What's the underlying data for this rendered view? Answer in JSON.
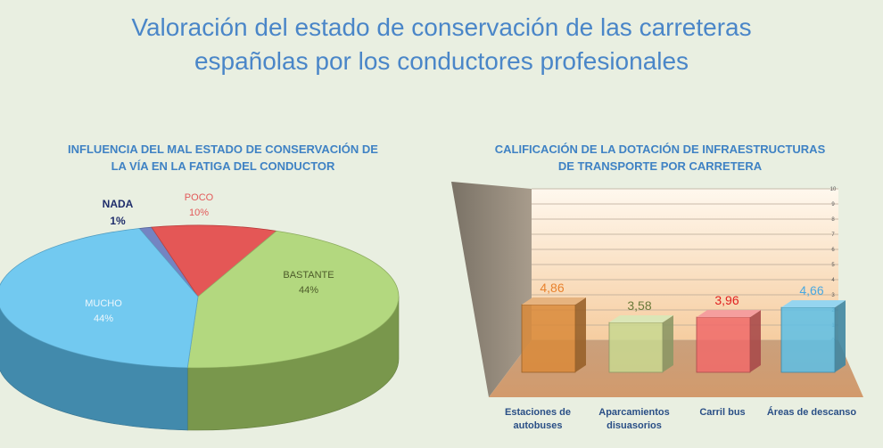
{
  "title": {
    "line1": "Valoración del estado de conservación de las carreteras",
    "line2": "españolas por los conductores profesionales"
  },
  "chart_data": [
    {
      "type": "pie",
      "title_lines": [
        "INFLUENCIA DEL MAL ESTADO DE CONSERVACIÓN DE",
        "LA VÍA EN LA FATIGA DEL CONDUCTOR"
      ],
      "three_d": true,
      "slices": [
        {
          "label": "NADA",
          "value": 1,
          "display": "1%",
          "color": "#5e6fb8"
        },
        {
          "label": "POCO",
          "value": 10,
          "display": "10%",
          "color": "#e03a3a"
        },
        {
          "label": "BASTANTE",
          "value": 44,
          "display": "44%",
          "color": "#a8d26a"
        },
        {
          "label": "MUCHO",
          "value": 44,
          "display": "44%",
          "color": "#5cc0ef"
        }
      ]
    },
    {
      "type": "bar",
      "three_d": true,
      "title_lines": [
        "CALIFICACIÓN DE LA DOTACIÓN DE INFRAESTRUCTURAS",
        "DE TRANSPORTE POR CARRETERA"
      ],
      "categories": [
        [
          "Estaciones de",
          "autobuses"
        ],
        [
          "Aparcamientos",
          "disuasorios"
        ],
        [
          "Carril bus"
        ],
        [
          "Áreas de descanso"
        ]
      ],
      "values": [
        4.86,
        3.58,
        3.96,
        4.66
      ],
      "value_labels": [
        "4,86",
        "3,58",
        "3,96",
        "4,66"
      ],
      "bar_colors": [
        "#d98a3a",
        "#c8d890",
        "#f06a6a",
        "#5cbfe8"
      ],
      "label_colors": [
        "#e8822e",
        "#6a7a3a",
        "#e02020",
        "#4aa8e0"
      ],
      "ylim": [
        0,
        10
      ],
      "yticks": [
        0,
        1,
        2,
        3,
        4,
        5,
        6,
        7,
        8,
        9,
        10
      ],
      "grid": true
    }
  ]
}
